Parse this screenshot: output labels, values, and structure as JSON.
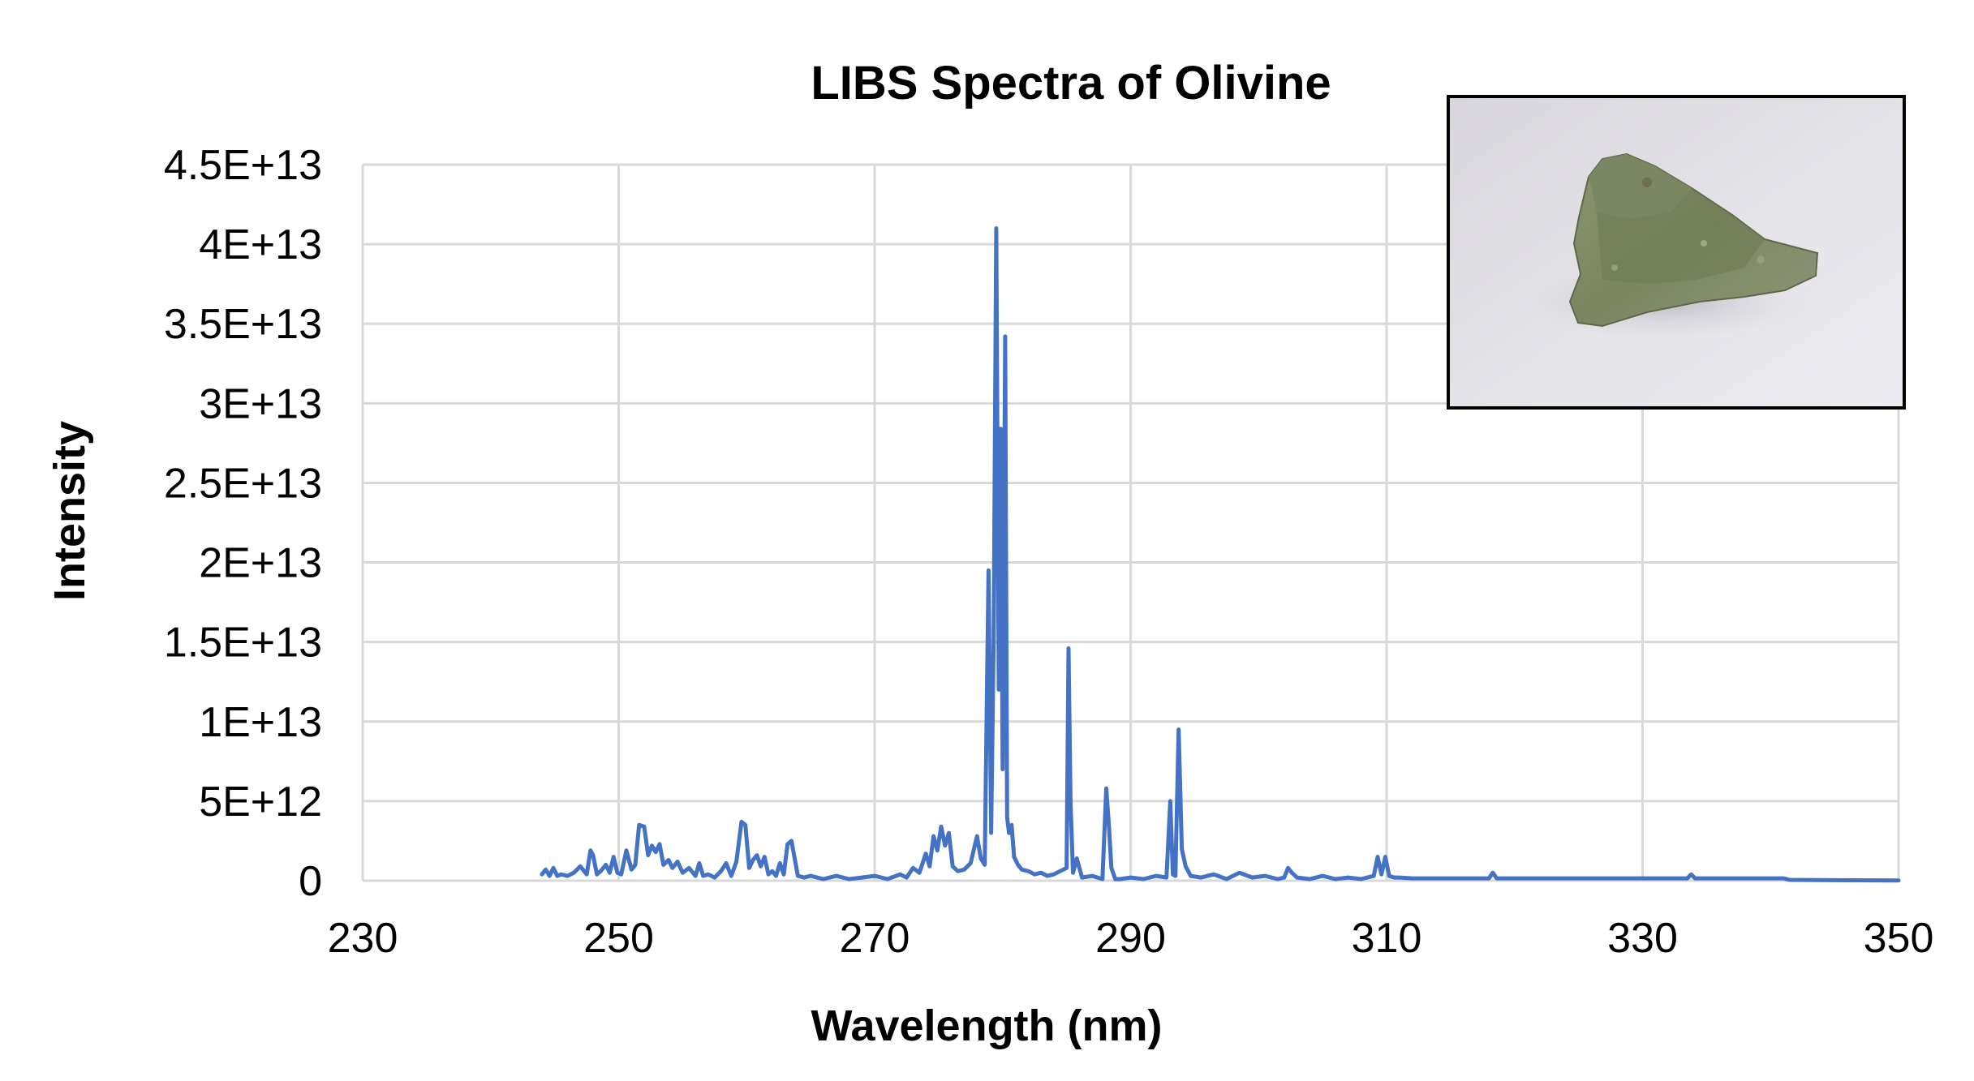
{
  "chart_data": {
    "type": "line",
    "title": "LIBS Spectra of Olivine",
    "xlabel": "Wavelength (nm)",
    "ylabel": "Intensity",
    "xlim": [
      230,
      350
    ],
    "ylim": [
      0,
      45000000000000.0
    ],
    "x_ticks": [
      230,
      250,
      270,
      290,
      310,
      330,
      350
    ],
    "x_tick_labels": [
      "230",
      "250",
      "270",
      "290",
      "310",
      "330",
      "350"
    ],
    "y_ticks": [
      0,
      5000000000000.0,
      10000000000000.0,
      15000000000000.0,
      20000000000000.0,
      25000000000000.0,
      30000000000000.0,
      35000000000000.0,
      40000000000000.0,
      45000000000000.0
    ],
    "y_tick_labels": [
      "0",
      "5E+12",
      "1E+13",
      "1.5E+13",
      "2E+13",
      "2.5E+13",
      "3E+13",
      "3.5E+13",
      "4E+13",
      "4.5E+13"
    ],
    "grid": true,
    "legend": "none",
    "series_color": "#4472c4",
    "series": [
      {
        "x": [
          244.0,
          244.3,
          244.6,
          244.9,
          245.2,
          245.5,
          246.0,
          246.5,
          247.0,
          247.5,
          247.8,
          248.0,
          248.3,
          248.6,
          249.0,
          249.3,
          249.6,
          249.9,
          250.2,
          250.6,
          251.0,
          251.3,
          251.6,
          252.0,
          252.3,
          252.6,
          252.9,
          253.2,
          253.5,
          253.9,
          254.2,
          254.6,
          255.0,
          255.5,
          256.0,
          256.3,
          256.6,
          257.0,
          257.5,
          258.0,
          258.4,
          258.8,
          259.2,
          259.6,
          259.9,
          260.2,
          260.5,
          260.8,
          261.1,
          261.4,
          261.7,
          262.0,
          262.3,
          262.6,
          262.9,
          263.2,
          263.5,
          264.0,
          264.5,
          265.0,
          266.0,
          267.0,
          268.0,
          269.0,
          270.0,
          271.0,
          272.0,
          272.5,
          273.0,
          273.5,
          274.0,
          274.3,
          274.6,
          274.9,
          275.2,
          275.5,
          275.8,
          276.1,
          276.5,
          277.0,
          277.5,
          278.0,
          278.3,
          278.6,
          278.9,
          279.1,
          279.3,
          279.5,
          279.7,
          279.85,
          280.0,
          280.2,
          280.35,
          280.5,
          280.7,
          280.9,
          281.2,
          281.5,
          282.0,
          282.5,
          283.0,
          283.5,
          284.0,
          284.5,
          285.0,
          285.15,
          285.3,
          285.5,
          285.8,
          286.2,
          287.0,
          287.8,
          288.1,
          288.3,
          288.5,
          288.8,
          289.2,
          290.0,
          291.0,
          292.0,
          292.8,
          293.1,
          293.3,
          293.5,
          293.75,
          294.0,
          294.3,
          294.7,
          295.5,
          296.5,
          297.5,
          298.5,
          299.5,
          300.5,
          301.5,
          302.0,
          302.3,
          302.6,
          303.0,
          304.0,
          305.0,
          306.0,
          307.0,
          308.0,
          309.0,
          309.3,
          309.6,
          309.9,
          310.2,
          310.6,
          311.0,
          312.0,
          314.0,
          316.0,
          318.0,
          318.3,
          318.6,
          320.0,
          325.0,
          330.0,
          333.5,
          333.8,
          334.1,
          335.0,
          338.0,
          341.0,
          341.5,
          345.0,
          350.0
        ],
        "y": [
          400000000000.0,
          700000000000.0,
          300000000000.0,
          800000000000.0,
          300000000000.0,
          400000000000.0,
          300000000000.0,
          500000000000.0,
          900000000000.0,
          400000000000.0,
          1900000000000.0,
          1600000000000.0,
          400000000000.0,
          600000000000.0,
          1000000000000.0,
          500000000000.0,
          1500000000000.0,
          500000000000.0,
          400000000000.0,
          1900000000000.0,
          700000000000.0,
          1000000000000.0,
          3500000000000.0,
          3400000000000.0,
          1600000000000.0,
          2200000000000.0,
          1800000000000.0,
          2300000000000.0,
          1000000000000.0,
          1300000000000.0,
          800000000000.0,
          1200000000000.0,
          500000000000.0,
          800000000000.0,
          300000000000.0,
          1100000000000.0,
          300000000000.0,
          400000000000.0,
          200000000000.0,
          600000000000.0,
          1100000000000.0,
          300000000000.0,
          1200000000000.0,
          3700000000000.0,
          3500000000000.0,
          800000000000.0,
          1300000000000.0,
          1600000000000.0,
          900000000000.0,
          1500000000000.0,
          400000000000.0,
          600000000000.0,
          300000000000.0,
          1100000000000.0,
          400000000000.0,
          2300000000000.0,
          2500000000000.0,
          300000000000.0,
          200000000000.0,
          300000000000.0,
          100000000000.0,
          300000000000.0,
          100000000000.0,
          200000000000.0,
          300000000000.0,
          100000000000.0,
          400000000000.0,
          200000000000.0,
          800000000000.0,
          500000000000.0,
          1700000000000.0,
          900000000000.0,
          2800000000000.0,
          1900000000000.0,
          3400000000000.0,
          2200000000000.0,
          3000000000000.0,
          900000000000.0,
          600000000000.0,
          700000000000.0,
          1100000000000.0,
          2800000000000.0,
          1400000000000.0,
          1000000000000.0,
          19500000000000.0,
          3000000000000.0,
          15000000000000.0,
          41000000000000.0,
          12000000000000.0,
          28400000000000.0,
          7000000000000.0,
          34200000000000.0,
          4000000000000.0,
          3000000000000.0,
          3500000000000.0,
          1500000000000.0,
          1000000000000.0,
          700000000000.0,
          600000000000.0,
          400000000000.0,
          500000000000.0,
          300000000000.0,
          400000000000.0,
          600000000000.0,
          800000000000.0,
          14600000000000.0,
          5000000000000.0,
          500000000000.0,
          1400000000000.0,
          200000000000.0,
          300000000000.0,
          100000000000.0,
          5800000000000.0,
          3500000000000.0,
          800000000000.0,
          100000000000.0,
          100000000000.0,
          200000000000.0,
          100000000000.0,
          300000000000.0,
          200000000000.0,
          5000000000000.0,
          400000000000.0,
          300000000000.0,
          9500000000000.0,
          2000000000000.0,
          900000000000.0,
          300000000000.0,
          200000000000.0,
          400000000000.0,
          100000000000.0,
          500000000000.0,
          200000000000.0,
          300000000000.0,
          100000000000.0,
          200000000000.0,
          800000000000.0,
          500000000000.0,
          200000000000.0,
          100000000000.0,
          300000000000.0,
          100000000000.0,
          200000000000.0,
          100000000000.0,
          300000000000.0,
          1500000000000.0,
          400000000000.0,
          1500000000000.0,
          300000000000.0,
          200000000000.0,
          200000000000.0,
          150000000000.0,
          150000000000.0,
          150000000000.0,
          150000000000.0,
          500000000000.0,
          150000000000.0,
          150000000000.0,
          150000000000.0,
          150000000000.0,
          150000000000.0,
          400000000000.0,
          150000000000.0,
          150000000000.0,
          150000000000.0,
          150000000000.0,
          50000000000.0,
          30000000000.0,
          10000000000.0
        ]
      }
    ],
    "inset_photo": "olivine-rock-photo"
  }
}
